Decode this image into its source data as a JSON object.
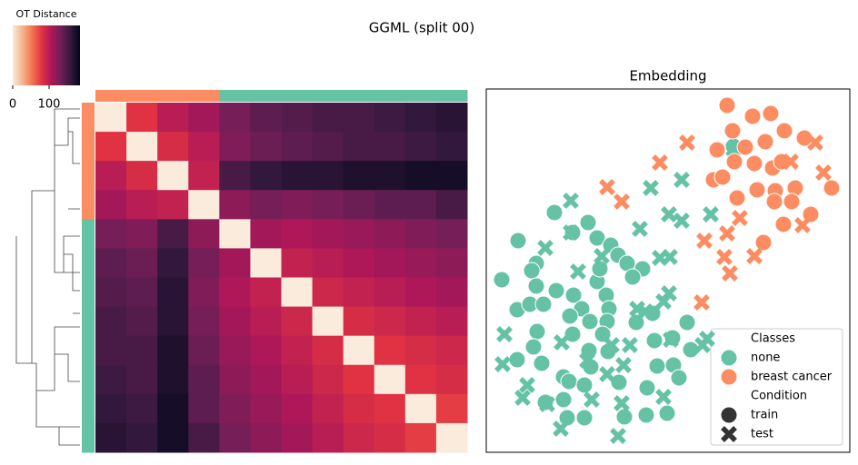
{
  "title": "GGML (split 00)",
  "chart_data": [
    {
      "type": "heatmap",
      "colorbar_label": "OT Distance",
      "clim": [
        0,
        185
      ],
      "cticks": [
        0,
        100
      ],
      "colormap": [
        "#faebdd",
        "#f6b48f",
        "#f37651",
        "#e13342",
        "#ad1759",
        "#701f57",
        "#35193e",
        "#03051a"
      ],
      "class_colors": [
        "#fc8d62",
        "#fc8d62",
        "#fc8d62",
        "#fc8d62",
        "#66c2a5",
        "#66c2a5",
        "#66c2a5",
        "#66c2a5",
        "#66c2a5",
        "#66c2a5",
        "#66c2a5",
        "#66c2a5"
      ],
      "matrix": [
        [
          0,
          80,
          100,
          110,
          130,
          140,
          145,
          150,
          150,
          155,
          160,
          165
        ],
        [
          80,
          0,
          85,
          100,
          125,
          135,
          140,
          145,
          150,
          150,
          155,
          160
        ],
        [
          100,
          85,
          0,
          95,
          150,
          160,
          165,
          165,
          170,
          170,
          175,
          175
        ],
        [
          110,
          100,
          95,
          0,
          120,
          130,
          125,
          130,
          135,
          140,
          140,
          150
        ],
        [
          130,
          125,
          150,
          120,
          0,
          110,
          105,
          110,
          115,
          120,
          125,
          130
        ],
        [
          140,
          135,
          160,
          130,
          110,
          0,
          95,
          100,
          105,
          110,
          115,
          120
        ],
        [
          145,
          140,
          165,
          125,
          105,
          95,
          0,
          90,
          95,
          100,
          105,
          110
        ],
        [
          150,
          145,
          165,
          130,
          110,
          100,
          90,
          0,
          85,
          90,
          95,
          100
        ],
        [
          150,
          150,
          170,
          135,
          115,
          105,
          95,
          85,
          0,
          80,
          85,
          90
        ],
        [
          155,
          150,
          170,
          140,
          120,
          110,
          100,
          90,
          80,
          0,
          80,
          85
        ],
        [
          160,
          155,
          175,
          140,
          125,
          115,
          105,
          95,
          85,
          80,
          0,
          75
        ],
        [
          165,
          160,
          175,
          150,
          130,
          120,
          110,
          100,
          90,
          85,
          75,
          0
        ]
      ]
    },
    {
      "type": "scatter",
      "title": "Embedding",
      "xlim": [
        0,
        100
      ],
      "ylim": [
        0,
        100
      ],
      "legend": {
        "class_title": "Classes",
        "condition_title": "Condition",
        "marker_color": "#333333"
      },
      "conditions": [
        {
          "name": "train",
          "marker": "circle"
        },
        {
          "name": "test",
          "marker": "cross"
        }
      ],
      "classes": [
        {
          "name": "none",
          "color": "#66c2a5",
          "points": [
            {
              "x": [
                18.75,
                28,
                8.75,
                23.75,
                30.5,
                34.25,
                36.25,
                38.75,
                43,
                40.25,
                13.75,
                12.5,
                4.25,
                13.75,
                19.25,
                24,
                30.5,
                33,
                33.75,
                26.25,
                8.5,
                12,
                15.75,
                23,
                28.5,
                33.25,
                41.25,
                45.75,
                55.25,
                14,
                23.75,
                32,
                46.25,
                13,
                28.25,
                33.5,
                56.25,
                8.5,
                15.25,
                28.75,
                47,
                51.5,
                21.25,
                22.75,
                27,
                36.5,
                53,
                44.25,
                16.25,
                21.25,
                22.25,
                27,
                38,
                44,
                49.75,
                68,
                31.25,
                51.25
              ],
              "y": [
                66,
                63.25,
                58.25,
                60.5,
                59,
                57,
                54.25,
                52,
                50.5,
                48.25,
                52,
                50,
                47.5,
                45.75,
                44.5,
                43.25,
                47,
                43.25,
                39.5,
                39.5,
                39.25,
                40.75,
                40.75,
                37.5,
                36,
                36,
                35.75,
                38.25,
                35.75,
                33.25,
                32.5,
                32.5,
                30.75,
                29,
                28,
                27.75,
                28.25,
                25.5,
                24.5,
                23.5,
                23.75,
                24,
                20.75,
                19.5,
                18.5,
                19.25,
                20.5,
                17.75,
                13.75,
                14.5,
                9.5,
                9.5,
                9.75,
                10.25,
                10.75,
                84.25,
                50.5,
                31.5
              ]
            },
            {
              "x": [
                23.25,
                45.25,
                53.75,
                42.25,
                50.25,
                53.75,
                61.75,
                16.25,
                23.25,
                25.25,
                47.75,
                50.5,
                31.75,
                41.5,
                50.25,
                48.75,
                43.75,
                5,
                20.75,
                34.5,
                39.5,
                50.75,
                60.75,
                4.5,
                11.25,
                10,
                16.75,
                29,
                33.25,
                37.75,
                27.75,
                37.25,
                48.75,
                20.5,
                36.25,
                68,
                59.5
              ],
              "y": [
                69.25,
                72.75,
                75,
                61.5,
                65.5,
                63.75,
                65.5,
                56.25,
                60.5,
                49.75,
                53.5,
                53.75,
                54,
                39.5,
                43.75,
                41.5,
                38.75,
                32.5,
                30.25,
                29.5,
                29.5,
                31,
                31.25,
                24.25,
                18.5,
                15,
                13.25,
                14.5,
                21.5,
                24,
                25.25,
                13.5,
                15.25,
                6.5,
                4.5,
                83.5,
                29.5
              ]
            }
          ]
        },
        {
          "name": "breast cancer",
          "color": "#fc8d62",
          "points": [
            {
              "x": [
                66.25,
                73.25,
                78.25,
                67.75,
                82,
                87.5,
                63.5,
                71.25,
                76.75,
                73.75,
                78.75,
                81.25,
                68.25,
                62.5,
                65,
                74.5,
                79.5,
                85,
                95,
                69,
                79.25,
                84,
                89.25,
                81.75,
                76.25
              ],
              "y": [
                95.5,
                92.5,
                93.25,
                88.5,
                88.5,
                86.5,
                83.25,
                84,
                85.5,
                79.5,
                78.25,
                80,
                80,
                75,
                75.75,
                72.25,
                72,
                72.75,
                72.75,
                70,
                69,
                69,
                65.5,
                62.75,
                57.75
              ]
            },
            {
              "x": [
                55.25,
                90.5,
                83.75,
                92.75,
                47.75,
                33.25,
                37.25,
                60,
                66.25,
                69.75,
                87,
                65.5,
                73.75,
                67,
                59.25
              ],
              "y": [
                85.25,
                85.25,
                80,
                77,
                79.75,
                73,
                69,
                58.25,
                60.25,
                64.5,
                62.5,
                53.75,
                54,
                49.25,
                41.25
              ]
            }
          ]
        }
      ]
    }
  ]
}
